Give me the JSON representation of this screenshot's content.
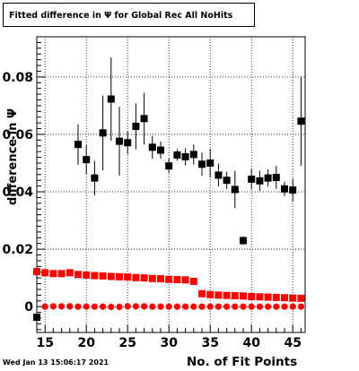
{
  "chart_data": {
    "type": "scatter",
    "title": "Fitted difference in Ψ  for Global Rec All NoHits",
    "xlabel": "No. of Fit Points",
    "ylabel": "difference in  Ψ",
    "xlim": [
      14,
      46.5
    ],
    "ylim": [
      -0.009,
      0.094
    ],
    "x_ticks": [
      15,
      20,
      25,
      30,
      35,
      40,
      45
    ],
    "y_ticks": [
      0,
      0.02,
      0.04,
      0.06,
      0.08
    ],
    "x_tick_labels": [
      "15",
      "20",
      "25",
      "30",
      "35",
      "40",
      "45"
    ],
    "y_tick_labels": [
      "0",
      "0.02",
      "0.04",
      "0.06",
      "0.08"
    ],
    "grid": true,
    "series": [
      {
        "marker": "square",
        "color": "#000000",
        "x": [
          14,
          19,
          20,
          21,
          22,
          23,
          24,
          25,
          26,
          27,
          28,
          29,
          30,
          31,
          32,
          33,
          34,
          35,
          36,
          37,
          38,
          39,
          40,
          41,
          42,
          43,
          44,
          45,
          46
        ],
        "y": [
          -0.0037,
          0.0565,
          0.0512,
          0.0448,
          0.0605,
          0.0723,
          0.0576,
          0.0571,
          0.0628,
          0.0655,
          0.0555,
          0.0545,
          0.049,
          0.0528,
          0.0522,
          0.053,
          0.0496,
          0.05,
          0.0458,
          0.044,
          0.0408,
          0.023,
          0.0444,
          0.0438,
          0.0448,
          0.045,
          0.041,
          0.0406,
          0.0646
        ],
        "err": [
          0.0005,
          0.007,
          0.005,
          0.006,
          0.013,
          0.0145,
          0.012,
          0.004,
          0.008,
          0.009,
          0.004,
          0.003,
          0.0025,
          0.002,
          0.003,
          0.0035,
          0.004,
          0.005,
          0.004,
          0.003,
          0.0065,
          0.0015,
          0.0035,
          0.0035,
          0.003,
          0.004,
          0.0025,
          0.004,
          0.0155
        ]
      },
      {
        "marker": "square",
        "color": "#ff0000",
        "x": [
          14,
          15,
          16,
          17,
          18,
          19,
          20,
          21,
          22,
          23,
          24,
          25,
          26,
          27,
          28,
          29,
          30,
          31,
          32,
          33,
          34,
          35,
          36,
          37,
          38,
          39,
          40,
          41,
          42,
          43,
          44,
          45,
          46
        ],
        "y": [
          0.0122,
          0.0118,
          0.0115,
          0.0115,
          0.0118,
          0.0112,
          0.011,
          0.0108,
          0.0107,
          0.0105,
          0.0104,
          0.0103,
          0.0101,
          0.01,
          0.0098,
          0.0097,
          0.0095,
          0.0094,
          0.0093,
          0.0088,
          0.0045,
          0.0042,
          0.004,
          0.0039,
          0.0038,
          0.0037,
          0.0035,
          0.0034,
          0.0033,
          0.0032,
          0.0031,
          0.003,
          0.0029
        ]
      },
      {
        "marker": "circle",
        "color": "#ff0000",
        "x": [
          15,
          16,
          17,
          18,
          19,
          20,
          21,
          22,
          23,
          24,
          25,
          26,
          27,
          28,
          29,
          30,
          31,
          32,
          33,
          34,
          35,
          36,
          37,
          38,
          39,
          40,
          41,
          42,
          43,
          44,
          45,
          46
        ],
        "y": [
          0.0,
          0.0001,
          0.0001,
          0.0001,
          0.0,
          0.0,
          0.0,
          0.0,
          -0.0001,
          -0.0001,
          0.0001,
          0.0001,
          0.0001,
          0.0,
          0.0,
          0.0,
          0.0,
          0.0,
          0.0,
          0.0,
          0.0,
          0.0,
          0.0,
          0.0,
          0.0,
          0.0,
          0.0,
          0.0,
          0.0,
          0.0,
          0.0,
          0.0
        ]
      }
    ]
  },
  "footer": {
    "timestamp": "Wed Jan 13 15:06:17 2021"
  }
}
